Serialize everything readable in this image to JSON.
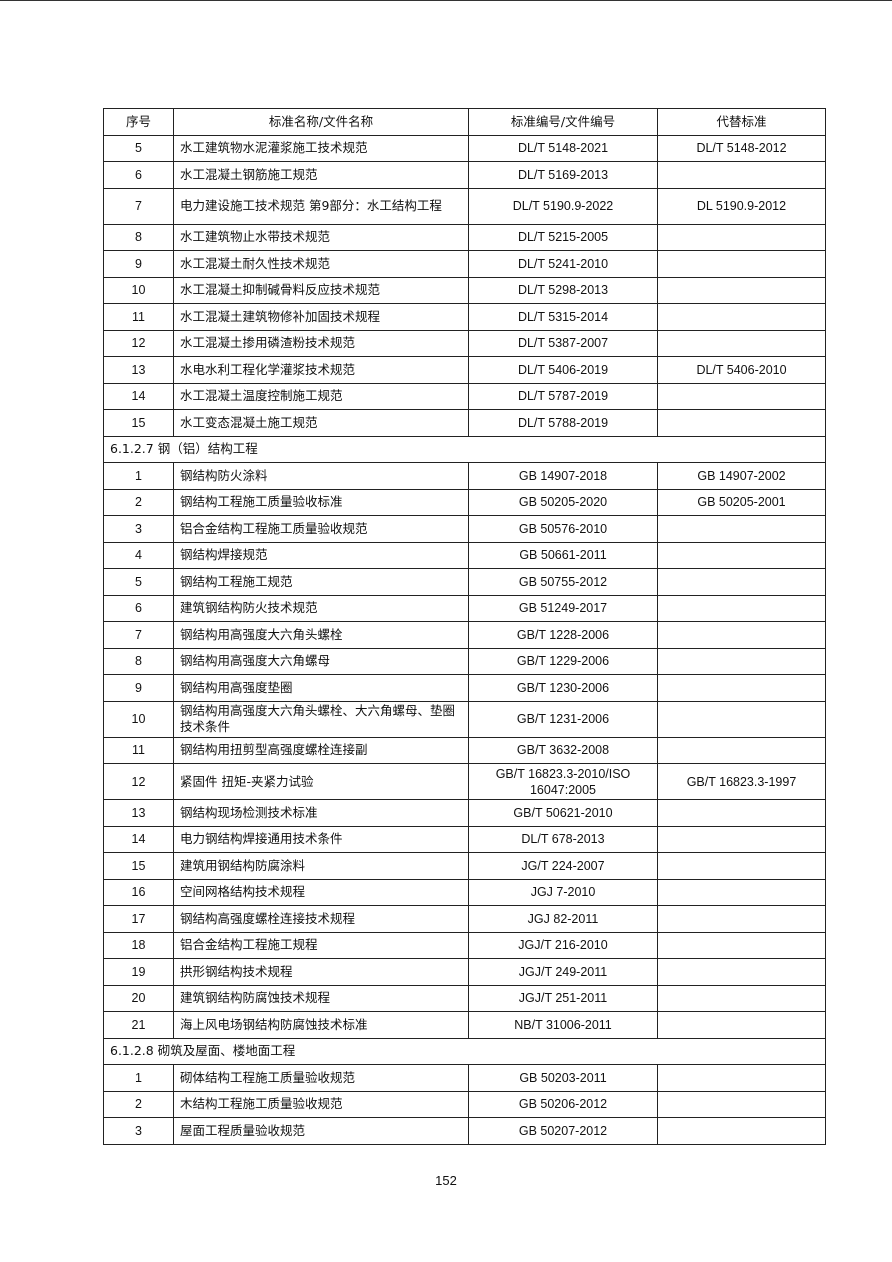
{
  "header": {
    "no": "序号",
    "name": "标准名称/文件名称",
    "code": "标准编号/文件编号",
    "replaces": "代替标准"
  },
  "rows": [
    {
      "no": "5",
      "name": "水工建筑物水泥灌浆施工技术规范",
      "code": "DL/T 5148-2021",
      "replaces": "DL/T 5148-2012"
    },
    {
      "no": "6",
      "name": "水工混凝土钢筋施工规范",
      "code": "DL/T 5169-2013",
      "replaces": ""
    },
    {
      "no": "7",
      "name": "电力建设施工技术规范 第9部分：水工结构工程",
      "code": "DL/T 5190.9-2022",
      "replaces": "DL 5190.9-2012",
      "tall": true
    },
    {
      "no": "8",
      "name": "水工建筑物止水带技术规范",
      "code": "DL/T 5215-2005",
      "replaces": ""
    },
    {
      "no": "9",
      "name": "水工混凝土耐久性技术规范",
      "code": "DL/T 5241-2010",
      "replaces": ""
    },
    {
      "no": "10",
      "name": "水工混凝土抑制碱骨料反应技术规范",
      "code": "DL/T 5298-2013",
      "replaces": ""
    },
    {
      "no": "11",
      "name": "水工混凝土建筑物修补加固技术规程",
      "code": "DL/T 5315-2014",
      "replaces": ""
    },
    {
      "no": "12",
      "name": "水工混凝土掺用磷渣粉技术规范",
      "code": "DL/T 5387-2007",
      "replaces": ""
    },
    {
      "no": "13",
      "name": "水电水利工程化学灌浆技术规范",
      "code": "DL/T 5406-2019",
      "replaces": "DL/T 5406-2010"
    },
    {
      "no": "14",
      "name": "水工混凝土温度控制施工规范",
      "code": "DL/T 5787-2019",
      "replaces": ""
    },
    {
      "no": "15",
      "name": "水工变态混凝土施工规范",
      "code": "DL/T 5788-2019",
      "replaces": ""
    },
    {
      "section": "6.1.2.7 钢（铝）结构工程"
    },
    {
      "no": "1",
      "name": "钢结构防火涂料",
      "code": "GB 14907-2018",
      "replaces": "GB 14907-2002"
    },
    {
      "no": "2",
      "name": "钢结构工程施工质量验收标准",
      "code": "GB 50205-2020",
      "replaces": "GB 50205-2001"
    },
    {
      "no": "3",
      "name": "铝合金结构工程施工质量验收规范",
      "code": "GB 50576-2010",
      "replaces": ""
    },
    {
      "no": "4",
      "name": "钢结构焊接规范",
      "code": "GB 50661-2011",
      "replaces": ""
    },
    {
      "no": "5",
      "name": "钢结构工程施工规范",
      "code": "GB 50755-2012",
      "replaces": ""
    },
    {
      "no": "6",
      "name": "建筑钢结构防火技术规范",
      "code": "GB 51249-2017",
      "replaces": ""
    },
    {
      "no": "7",
      "name": "钢结构用高强度大六角头螺栓",
      "code": "GB/T 1228-2006",
      "replaces": ""
    },
    {
      "no": "8",
      "name": "钢结构用高强度大六角螺母",
      "code": "GB/T 1229-2006",
      "replaces": ""
    },
    {
      "no": "9",
      "name": "钢结构用高强度垫圈",
      "code": "GB/T 1230-2006",
      "replaces": ""
    },
    {
      "no": "10",
      "name": "钢结构用高强度大六角头螺栓、大六角螺母、垫圈技术条件",
      "code": "GB/T 1231-2006",
      "replaces": "",
      "tall": true
    },
    {
      "no": "11",
      "name": "钢结构用扭剪型高强度螺栓连接副",
      "code": "GB/T 3632-2008",
      "replaces": ""
    },
    {
      "no": "12",
      "name": "紧固件 扭矩-夹紧力试验",
      "code": "GB/T 16823.3-2010/ISO 16047:2005",
      "replaces": "GB/T 16823.3-1997",
      "tall": true
    },
    {
      "no": "13",
      "name": "钢结构现场检测技术标准",
      "code": "GB/T 50621-2010",
      "replaces": ""
    },
    {
      "no": "14",
      "name": "电力钢结构焊接通用技术条件",
      "code": "DL/T 678-2013",
      "replaces": ""
    },
    {
      "no": "15",
      "name": "建筑用钢结构防腐涂料",
      "code": "JG/T 224-2007",
      "replaces": ""
    },
    {
      "no": "16",
      "name": "空间网格结构技术规程",
      "code": "JGJ 7-2010",
      "replaces": ""
    },
    {
      "no": "17",
      "name": "钢结构高强度螺栓连接技术规程",
      "code": "JGJ 82-2011",
      "replaces": ""
    },
    {
      "no": "18",
      "name": "铝合金结构工程施工规程",
      "code": "JGJ/T 216-2010",
      "replaces": ""
    },
    {
      "no": "19",
      "name": "拱形钢结构技术规程",
      "code": "JGJ/T 249-2011",
      "replaces": ""
    },
    {
      "no": "20",
      "name": "建筑钢结构防腐蚀技术规程",
      "code": "JGJ/T 251-2011",
      "replaces": ""
    },
    {
      "no": "21",
      "name": "海上风电场钢结构防腐蚀技术标准",
      "code": "NB/T 31006-2011",
      "replaces": ""
    },
    {
      "section": "6.1.2.8 砌筑及屋面、楼地面工程"
    },
    {
      "no": "1",
      "name": "砌体结构工程施工质量验收规范",
      "code": "GB 50203-2011",
      "replaces": ""
    },
    {
      "no": "2",
      "name": "木结构工程施工质量验收规范",
      "code": "GB 50206-2012",
      "replaces": ""
    },
    {
      "no": "3",
      "name": "屋面工程质量验收规范",
      "code": "GB 50207-2012",
      "replaces": ""
    }
  ],
  "page_number": "152"
}
